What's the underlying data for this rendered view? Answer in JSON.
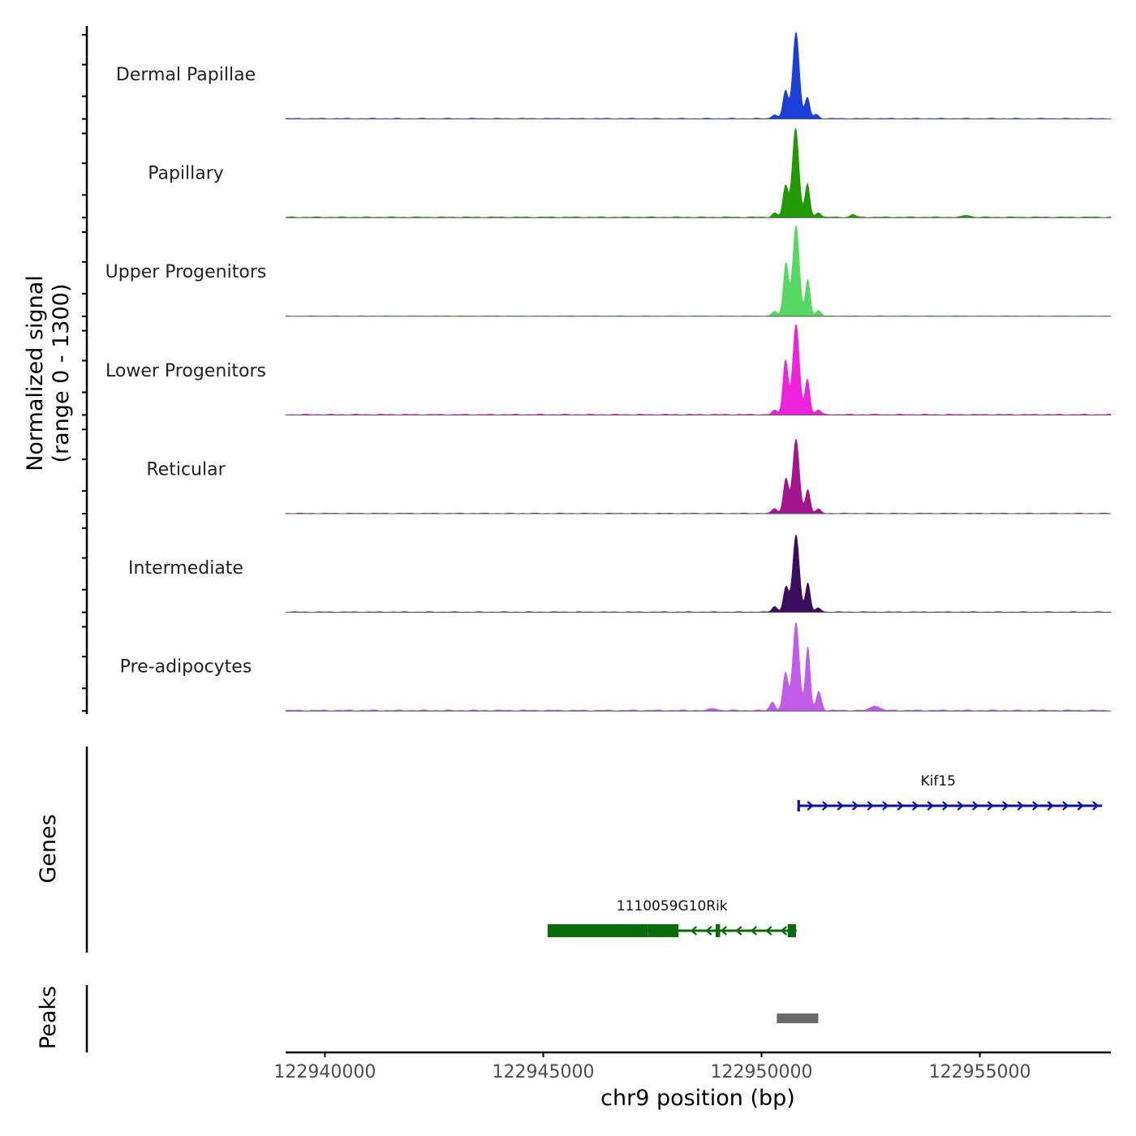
{
  "chart_data": {
    "type": "area",
    "title": "",
    "ylabel": "Normalized signal",
    "ylabel_range": "(range 0 - 1300)",
    "xlabel": "chr9 position (bp)",
    "xlim": [
      122939100,
      122958000
    ],
    "xticks": [
      122940000,
      122945000,
      122950000,
      122955000
    ],
    "xtick_labels": [
      "122940000",
      "122945000",
      "122950000",
      "122955000"
    ],
    "ylim": [
      0,
      1300
    ],
    "tracks": [
      {
        "name": "Dermal Papillae",
        "color": "#1a3fd9",
        "peaks": [
          {
            "pos": 122950300,
            "h": 60,
            "w": 60
          },
          {
            "pos": 122950550,
            "h": 400,
            "w": 60
          },
          {
            "pos": 122950790,
            "h": 1240,
            "w": 75
          },
          {
            "pos": 122951050,
            "h": 300,
            "w": 55
          },
          {
            "pos": 122951250,
            "h": 60,
            "w": 60
          }
        ],
        "base": 12
      },
      {
        "name": "Papillary",
        "color": "#1f9b00",
        "peaks": [
          {
            "pos": 122950300,
            "h": 60,
            "w": 60
          },
          {
            "pos": 122950550,
            "h": 450,
            "w": 60
          },
          {
            "pos": 122950780,
            "h": 1280,
            "w": 75
          },
          {
            "pos": 122951050,
            "h": 480,
            "w": 55
          },
          {
            "pos": 122951300,
            "h": 70,
            "w": 60
          },
          {
            "pos": 122952100,
            "h": 40,
            "w": 60
          },
          {
            "pos": 122954700,
            "h": 30,
            "w": 80
          }
        ],
        "base": 14
      },
      {
        "name": "Upper Progenitors",
        "color": "#55d962",
        "peaks": [
          {
            "pos": 122950300,
            "h": 70,
            "w": 60
          },
          {
            "pos": 122950560,
            "h": 760,
            "w": 60
          },
          {
            "pos": 122950790,
            "h": 1300,
            "w": 75
          },
          {
            "pos": 122951060,
            "h": 520,
            "w": 55
          },
          {
            "pos": 122951300,
            "h": 80,
            "w": 60
          }
        ],
        "base": 10
      },
      {
        "name": "Lower Progenitors",
        "color": "#ee22dd",
        "peaks": [
          {
            "pos": 122950300,
            "h": 60,
            "w": 60
          },
          {
            "pos": 122950550,
            "h": 780,
            "w": 60
          },
          {
            "pos": 122950790,
            "h": 1300,
            "w": 75
          },
          {
            "pos": 122951050,
            "h": 510,
            "w": 55
          },
          {
            "pos": 122951300,
            "h": 70,
            "w": 60
          }
        ],
        "base": 14
      },
      {
        "name": "Reticular",
        "color": "#a3158f",
        "peaks": [
          {
            "pos": 122950300,
            "h": 70,
            "w": 60
          },
          {
            "pos": 122950560,
            "h": 500,
            "w": 60
          },
          {
            "pos": 122950790,
            "h": 1060,
            "w": 75
          },
          {
            "pos": 122951060,
            "h": 340,
            "w": 55
          },
          {
            "pos": 122951300,
            "h": 60,
            "w": 60
          }
        ],
        "base": 10
      },
      {
        "name": "Intermediate",
        "color": "#3b0d5c",
        "peaks": [
          {
            "pos": 122950300,
            "h": 80,
            "w": 60
          },
          {
            "pos": 122950560,
            "h": 360,
            "w": 60
          },
          {
            "pos": 122950790,
            "h": 1110,
            "w": 75
          },
          {
            "pos": 122951060,
            "h": 420,
            "w": 55
          },
          {
            "pos": 122951300,
            "h": 60,
            "w": 60
          }
        ],
        "base": 10
      },
      {
        "name": "Pre-adipocytes",
        "color": "#c05ce8",
        "peaks": [
          {
            "pos": 122950250,
            "h": 120,
            "w": 60
          },
          {
            "pos": 122950550,
            "h": 540,
            "w": 60
          },
          {
            "pos": 122950790,
            "h": 1260,
            "w": 75
          },
          {
            "pos": 122951060,
            "h": 900,
            "w": 55
          },
          {
            "pos": 122951310,
            "h": 270,
            "w": 60
          },
          {
            "pos": 122952600,
            "h": 70,
            "w": 100
          },
          {
            "pos": 122948900,
            "h": 30,
            "w": 80
          }
        ],
        "base": 18
      }
    ],
    "genes": [
      {
        "name": "Kif15",
        "start": 122950850,
        "end": 122957800,
        "strand": "+",
        "color": "#1010a0",
        "exons": [
          {
            "start": 122950820,
            "end": 122950880
          }
        ]
      },
      {
        "name": "1110059G10Rik",
        "start": 122945100,
        "end": 122950800,
        "strand": "-",
        "color": "#0a6b0a",
        "exons": [
          {
            "start": 122945100,
            "end": 122947400
          },
          {
            "start": 122947400,
            "end": 122948100
          },
          {
            "start": 122948950,
            "end": 122949050
          },
          {
            "start": 122950600,
            "end": 122950790
          }
        ]
      }
    ],
    "genes_label": "Genes",
    "peaks_label": "Peaks",
    "peak_regions": [
      {
        "start": 122950350,
        "end": 122951300,
        "color": "#6a6a6a"
      }
    ]
  }
}
